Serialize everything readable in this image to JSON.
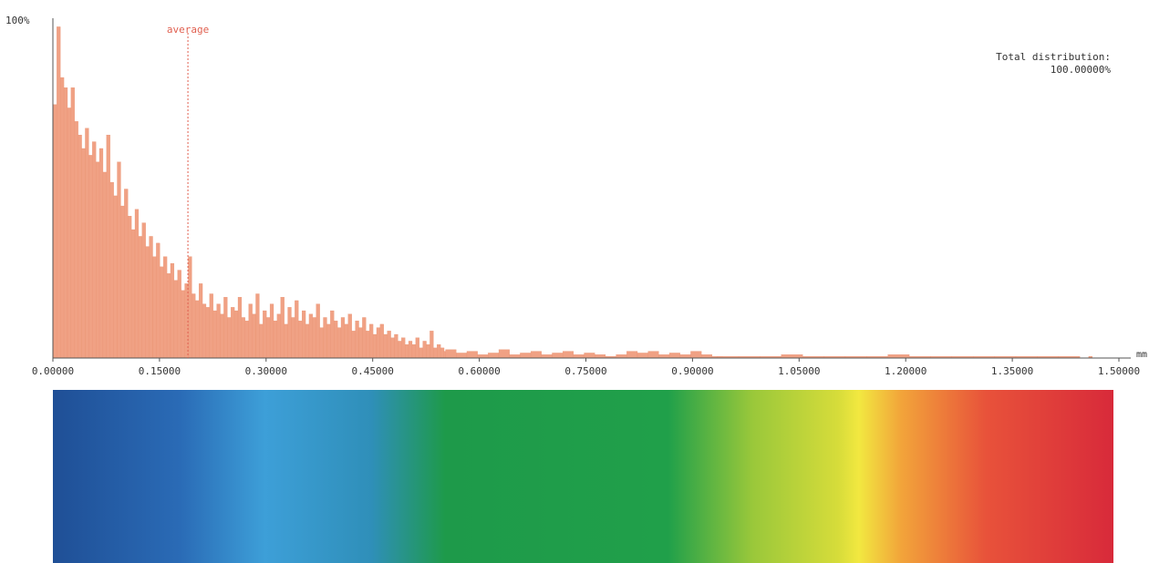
{
  "chart_data": {
    "type": "bar",
    "title": "",
    "ylabel": "",
    "xlabel": "",
    "y_top_label": "100%",
    "x_unit": "mm",
    "x_ticks": [
      "0.00000",
      "0.15000",
      "0.30000",
      "0.45000",
      "0.60000",
      "0.75000",
      "0.90000",
      "1.05000",
      "1.20000",
      "1.35000",
      "1.50000"
    ],
    "xlim": [
      0,
      1.5
    ],
    "ylim": [
      0,
      100
    ],
    "average_label": "average",
    "average_value": 0.19,
    "total_label": "Total distribution:",
    "total_value": "100.00000%",
    "bar_color": "#f0a184",
    "bar_edge_color": "#e8906f",
    "marker_color": "#e06050",
    "grid": false,
    "legend": "none",
    "bins": [
      {
        "x": 0.003,
        "y": 75
      },
      {
        "x": 0.008,
        "y": 98
      },
      {
        "x": 0.013,
        "y": 83
      },
      {
        "x": 0.018,
        "y": 80
      },
      {
        "x": 0.023,
        "y": 74
      },
      {
        "x": 0.028,
        "y": 80
      },
      {
        "x": 0.033,
        "y": 70
      },
      {
        "x": 0.038,
        "y": 66
      },
      {
        "x": 0.043,
        "y": 62
      },
      {
        "x": 0.048,
        "y": 68
      },
      {
        "x": 0.053,
        "y": 60
      },
      {
        "x": 0.058,
        "y": 64
      },
      {
        "x": 0.063,
        "y": 58
      },
      {
        "x": 0.068,
        "y": 62
      },
      {
        "x": 0.073,
        "y": 55
      },
      {
        "x": 0.078,
        "y": 66
      },
      {
        "x": 0.083,
        "y": 52
      },
      {
        "x": 0.088,
        "y": 48
      },
      {
        "x": 0.093,
        "y": 58
      },
      {
        "x": 0.098,
        "y": 45
      },
      {
        "x": 0.103,
        "y": 50
      },
      {
        "x": 0.108,
        "y": 42
      },
      {
        "x": 0.113,
        "y": 38
      },
      {
        "x": 0.118,
        "y": 44
      },
      {
        "x": 0.123,
        "y": 36
      },
      {
        "x": 0.128,
        "y": 40
      },
      {
        "x": 0.133,
        "y": 33
      },
      {
        "x": 0.138,
        "y": 36
      },
      {
        "x": 0.143,
        "y": 30
      },
      {
        "x": 0.148,
        "y": 34
      },
      {
        "x": 0.153,
        "y": 27
      },
      {
        "x": 0.158,
        "y": 30
      },
      {
        "x": 0.163,
        "y": 25
      },
      {
        "x": 0.168,
        "y": 28
      },
      {
        "x": 0.173,
        "y": 23
      },
      {
        "x": 0.178,
        "y": 26
      },
      {
        "x": 0.183,
        "y": 20
      },
      {
        "x": 0.188,
        "y": 22
      },
      {
        "x": 0.193,
        "y": 30
      },
      {
        "x": 0.198,
        "y": 19
      },
      {
        "x": 0.203,
        "y": 17
      },
      {
        "x": 0.208,
        "y": 22
      },
      {
        "x": 0.213,
        "y": 16
      },
      {
        "x": 0.218,
        "y": 15
      },
      {
        "x": 0.223,
        "y": 19
      },
      {
        "x": 0.228,
        "y": 14
      },
      {
        "x": 0.233,
        "y": 16
      },
      {
        "x": 0.238,
        "y": 13
      },
      {
        "x": 0.243,
        "y": 18
      },
      {
        "x": 0.248,
        "y": 12
      },
      {
        "x": 0.253,
        "y": 15
      },
      {
        "x": 0.258,
        "y": 14
      },
      {
        "x": 0.263,
        "y": 18
      },
      {
        "x": 0.268,
        "y": 12
      },
      {
        "x": 0.273,
        "y": 11
      },
      {
        "x": 0.278,
        "y": 16
      },
      {
        "x": 0.283,
        "y": 13
      },
      {
        "x": 0.288,
        "y": 19
      },
      {
        "x": 0.293,
        "y": 10
      },
      {
        "x": 0.298,
        "y": 14
      },
      {
        "x": 0.303,
        "y": 12
      },
      {
        "x": 0.308,
        "y": 16
      },
      {
        "x": 0.313,
        "y": 11
      },
      {
        "x": 0.318,
        "y": 13
      },
      {
        "x": 0.323,
        "y": 18
      },
      {
        "x": 0.328,
        "y": 10
      },
      {
        "x": 0.333,
        "y": 15
      },
      {
        "x": 0.338,
        "y": 12
      },
      {
        "x": 0.343,
        "y": 17
      },
      {
        "x": 0.348,
        "y": 11
      },
      {
        "x": 0.353,
        "y": 14
      },
      {
        "x": 0.358,
        "y": 10
      },
      {
        "x": 0.363,
        "y": 13
      },
      {
        "x": 0.368,
        "y": 12
      },
      {
        "x": 0.373,
        "y": 16
      },
      {
        "x": 0.378,
        "y": 9
      },
      {
        "x": 0.383,
        "y": 12
      },
      {
        "x": 0.388,
        "y": 10
      },
      {
        "x": 0.393,
        "y": 14
      },
      {
        "x": 0.398,
        "y": 11
      },
      {
        "x": 0.403,
        "y": 9
      },
      {
        "x": 0.408,
        "y": 12
      },
      {
        "x": 0.413,
        "y": 10
      },
      {
        "x": 0.418,
        "y": 13
      },
      {
        "x": 0.423,
        "y": 8
      },
      {
        "x": 0.428,
        "y": 11
      },
      {
        "x": 0.433,
        "y": 9
      },
      {
        "x": 0.438,
        "y": 12
      },
      {
        "x": 0.443,
        "y": 8
      },
      {
        "x": 0.448,
        "y": 10
      },
      {
        "x": 0.453,
        "y": 7
      },
      {
        "x": 0.458,
        "y": 9
      },
      {
        "x": 0.463,
        "y": 10
      },
      {
        "x": 0.468,
        "y": 7
      },
      {
        "x": 0.473,
        "y": 8
      },
      {
        "x": 0.478,
        "y": 6
      },
      {
        "x": 0.483,
        "y": 7
      },
      {
        "x": 0.488,
        "y": 5
      },
      {
        "x": 0.493,
        "y": 6
      },
      {
        "x": 0.498,
        "y": 4
      },
      {
        "x": 0.503,
        "y": 5
      },
      {
        "x": 0.508,
        "y": 4
      },
      {
        "x": 0.513,
        "y": 6
      },
      {
        "x": 0.518,
        "y": 3
      },
      {
        "x": 0.523,
        "y": 5
      },
      {
        "x": 0.528,
        "y": 4
      },
      {
        "x": 0.533,
        "y": 8
      },
      {
        "x": 0.538,
        "y": 3
      },
      {
        "x": 0.543,
        "y": 4
      },
      {
        "x": 0.548,
        "y": 3
      },
      {
        "x": 0.553,
        "y": 2
      },
      {
        "x": 0.56,
        "y": 2.5
      },
      {
        "x": 0.575,
        "y": 1.5
      },
      {
        "x": 0.59,
        "y": 2
      },
      {
        "x": 0.605,
        "y": 1
      },
      {
        "x": 0.62,
        "y": 1.5
      },
      {
        "x": 0.635,
        "y": 2.5
      },
      {
        "x": 0.65,
        "y": 1
      },
      {
        "x": 0.665,
        "y": 1.5
      },
      {
        "x": 0.68,
        "y": 2
      },
      {
        "x": 0.695,
        "y": 1
      },
      {
        "x": 0.71,
        "y": 1.5
      },
      {
        "x": 0.725,
        "y": 2
      },
      {
        "x": 0.74,
        "y": 1
      },
      {
        "x": 0.755,
        "y": 1.5
      },
      {
        "x": 0.77,
        "y": 1
      },
      {
        "x": 0.785,
        "y": 0.5
      },
      {
        "x": 0.8,
        "y": 1
      },
      {
        "x": 0.815,
        "y": 2
      },
      {
        "x": 0.83,
        "y": 1.5
      },
      {
        "x": 0.845,
        "y": 2
      },
      {
        "x": 0.86,
        "y": 1
      },
      {
        "x": 0.875,
        "y": 1.5
      },
      {
        "x": 0.89,
        "y": 1
      },
      {
        "x": 0.905,
        "y": 2
      },
      {
        "x": 0.92,
        "y": 1
      },
      {
        "x": 0.935,
        "y": 0.5
      },
      {
        "x": 0.95,
        "y": 0.5
      },
      {
        "x": 0.98,
        "y": 0.5
      },
      {
        "x": 1.01,
        "y": 0.5
      },
      {
        "x": 1.04,
        "y": 1
      },
      {
        "x": 1.07,
        "y": 0.5
      },
      {
        "x": 1.1,
        "y": 0.5
      },
      {
        "x": 1.13,
        "y": 0.5
      },
      {
        "x": 1.16,
        "y": 0.5
      },
      {
        "x": 1.19,
        "y": 1
      },
      {
        "x": 1.22,
        "y": 0.5
      },
      {
        "x": 1.25,
        "y": 0.5
      },
      {
        "x": 1.28,
        "y": 0.5
      },
      {
        "x": 1.31,
        "y": 0.5
      },
      {
        "x": 1.34,
        "y": 0.5
      },
      {
        "x": 1.37,
        "y": 0.5
      },
      {
        "x": 1.4,
        "y": 0.5
      },
      {
        "x": 1.43,
        "y": 0.5
      },
      {
        "x": 1.46,
        "y": 0.5
      }
    ],
    "color_scale": {
      "stops": [
        {
          "at": 0.0,
          "color": "#1f4f96"
        },
        {
          "at": 0.12,
          "color": "#2a6bb6"
        },
        {
          "at": 0.2,
          "color": "#3d9fd8"
        },
        {
          "at": 0.3,
          "color": "#2f8fb9"
        },
        {
          "at": 0.37,
          "color": "#1e9a4a"
        },
        {
          "at": 0.58,
          "color": "#20a04a"
        },
        {
          "at": 0.66,
          "color": "#9ac83a"
        },
        {
          "at": 0.74,
          "color": "#d6dc3a"
        },
        {
          "at": 0.76,
          "color": "#f2e840"
        },
        {
          "at": 0.8,
          "color": "#f2a43a"
        },
        {
          "at": 0.88,
          "color": "#e8523a"
        },
        {
          "at": 1.0,
          "color": "#d82a3a"
        }
      ]
    }
  }
}
